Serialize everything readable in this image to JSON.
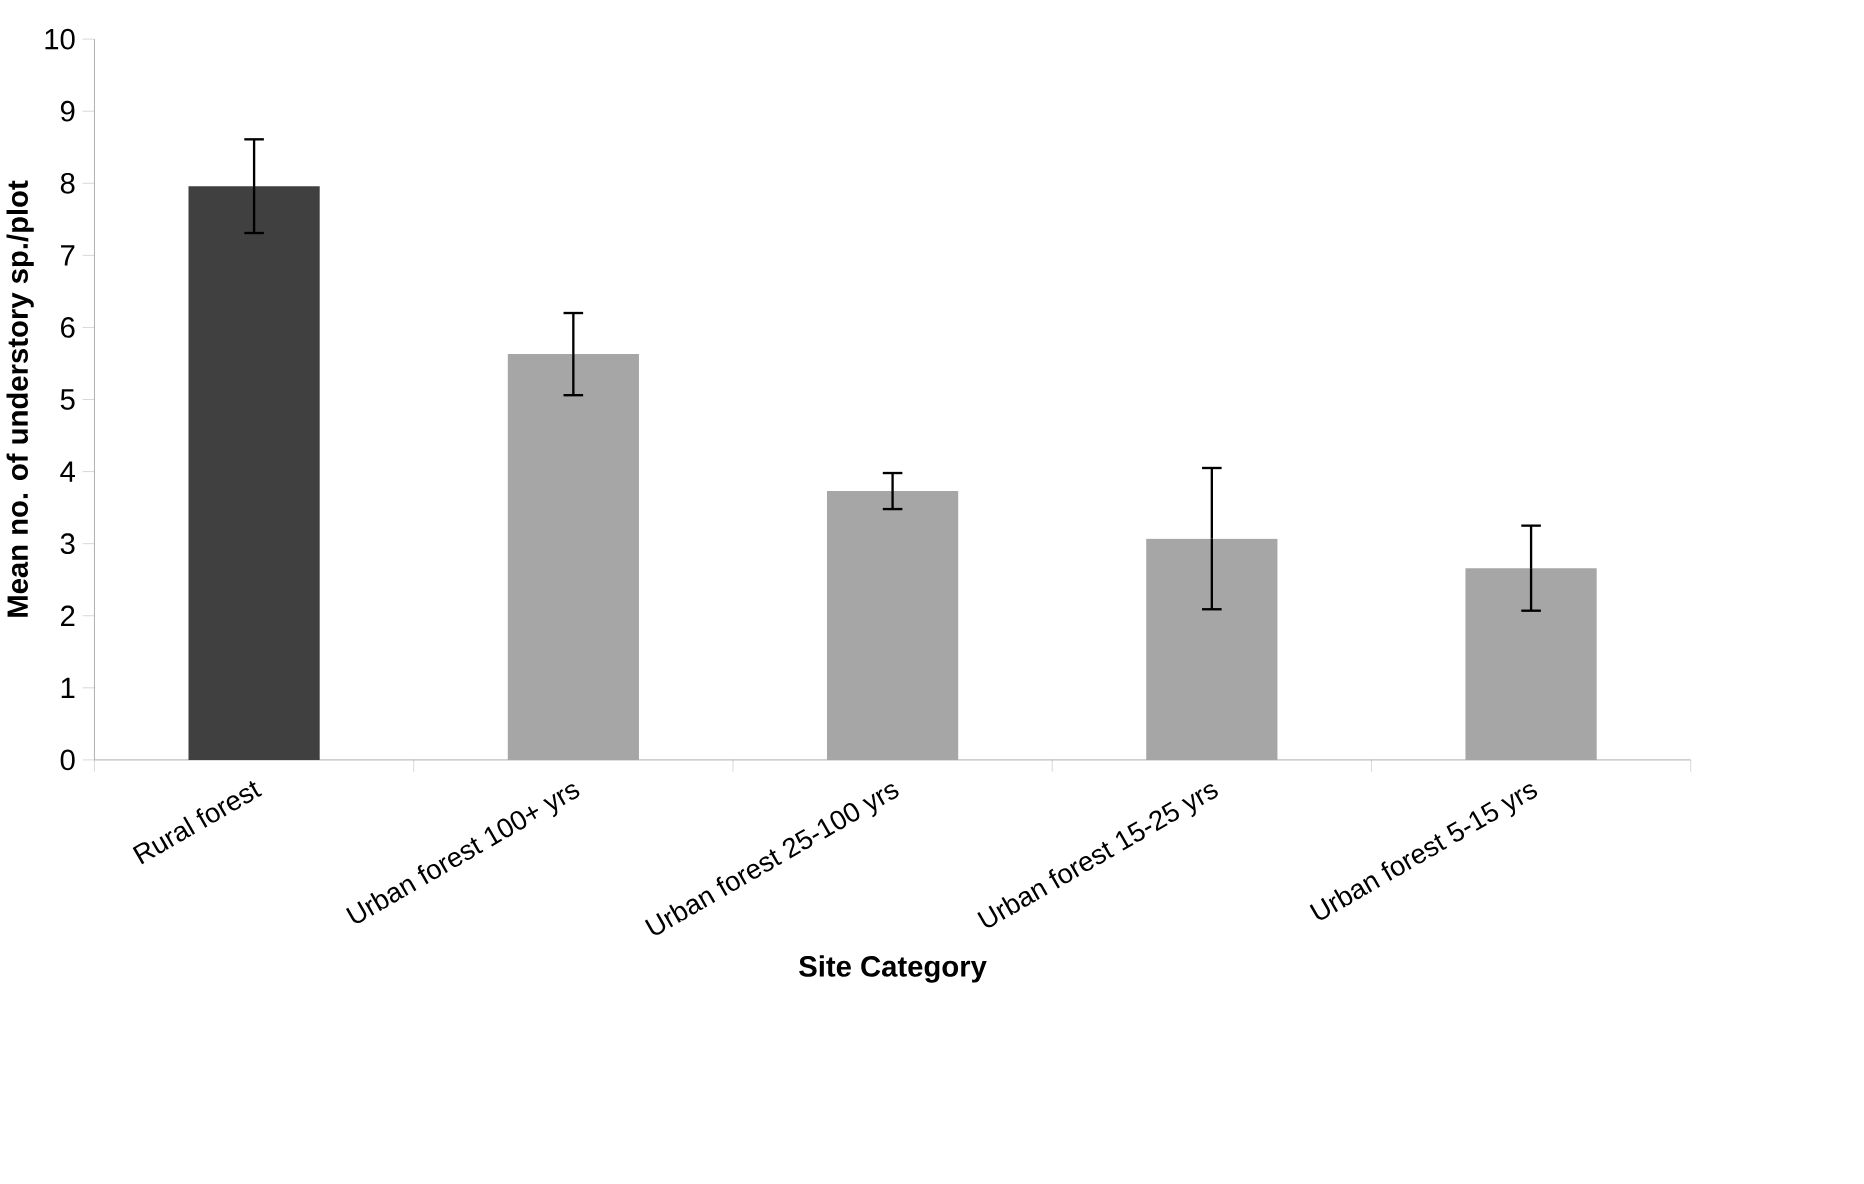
{
  "chart_data": {
    "type": "bar",
    "xlabel": "Site Category",
    "ylabel": "Mean no. of understory sp./plot",
    "categories": [
      "Rural forest",
      "Urban forest 100+ yrs",
      "Urban forest 25-100 yrs",
      "Urban forest 15-25 yrs",
      "Urban forest 5-15 yrs"
    ],
    "values": [
      7.96,
      5.63,
      3.73,
      3.07,
      2.66
    ],
    "errors": [
      0.65,
      0.57,
      0.25,
      0.98,
      0.59
    ],
    "colors": [
      "#404040",
      "#a6a6a6",
      "#a6a6a6",
      "#a6a6a6",
      "#a6a6a6"
    ],
    "ylim": [
      0,
      10
    ],
    "yticks": [
      0,
      1,
      2,
      3,
      4,
      5,
      6,
      7,
      8,
      9,
      10
    ]
  }
}
